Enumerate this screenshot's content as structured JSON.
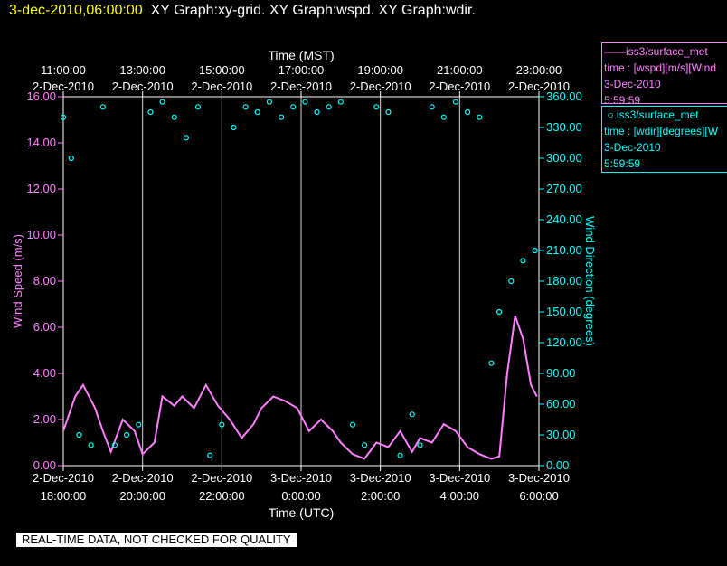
{
  "header": {
    "timestamp": "3-dec-2010,06:00:00",
    "graphs": "XY Graph:xy-grid.  XY Graph:wspd.  XY Graph:wdir."
  },
  "legend": {
    "wspd": {
      "line1": "iss3/surface_met",
      "line2": "time : [wspd][m/s][Wind",
      "line3": "3-Dec-2010",
      "line4": "5:59:59",
      "color": "#ff80ff",
      "symbol": "line"
    },
    "wdir": {
      "line1": "iss3/surface_met",
      "line2": "time : [wdir][degrees][W",
      "line3": "3-Dec-2010",
      "line4": "5:59:59",
      "color": "#00ffff",
      "symbol": "circle"
    }
  },
  "footer": "REAL-TIME DATA, NOT CHECKED FOR QUALITY",
  "chart_data": {
    "type": "scatter",
    "grid": "vertical only",
    "top_axis": {
      "label": "Time (MST)",
      "ticks": [
        {
          "time": "11:00:00",
          "date": "2-Dec-2010"
        },
        {
          "time": "13:00:00",
          "date": "2-Dec-2010"
        },
        {
          "time": "15:00:00",
          "date": "2-Dec-2010"
        },
        {
          "time": "17:00:00",
          "date": "2-Dec-2010"
        },
        {
          "time": "19:00:00",
          "date": "2-Dec-2010"
        },
        {
          "time": "21:00:00",
          "date": "2-Dec-2010"
        },
        {
          "time": "23:00:00",
          "date": "2-Dec-2010"
        }
      ]
    },
    "bottom_axis": {
      "label": "Time (UTC)",
      "ticks": [
        {
          "date": "2-Dec-2010",
          "time": "18:00:00"
        },
        {
          "date": "2-Dec-2010",
          "time": "20:00:00"
        },
        {
          "date": "2-Dec-2010",
          "time": "22:00:00"
        },
        {
          "date": "3-Dec-2010",
          "time": "0:00:00"
        },
        {
          "date": "3-Dec-2010",
          "time": "2:00:00"
        },
        {
          "date": "3-Dec-2010",
          "time": "4:00:00"
        },
        {
          "date": "3-Dec-2010",
          "time": "6:00:00"
        }
      ],
      "range": [
        "2-Dec-2010 18:00:00",
        "3-Dec-2010 06:00:00"
      ]
    },
    "left_axis": {
      "label": "Wind Speed (m/s)",
      "range": [
        0,
        16
      ],
      "ticks": [
        "0.00",
        "2.00",
        "4.00",
        "6.00",
        "8.00",
        "10.00",
        "12.00",
        "14.00",
        "16.00"
      ],
      "color": "#ff80ff"
    },
    "right_axis": {
      "label": "Wind Direction (degrees)",
      "range": [
        0,
        360
      ],
      "ticks": [
        "0.00",
        "30.00",
        "60.00",
        "90.00",
        "120.00",
        "150.00",
        "180.00",
        "210.00",
        "240.00",
        "270.00",
        "300.00",
        "330.00",
        "360.00"
      ],
      "color": "#00ffff"
    },
    "series": [
      {
        "name": "iss3/surface_met time : [wspd][m/s][Wind",
        "axis": "left",
        "style": "line",
        "color": "#ff80ff",
        "x_hours_utc_from_start": [
          0,
          0.3,
          0.5,
          0.8,
          1.0,
          1.2,
          1.5,
          1.8,
          2.0,
          2.3,
          2.5,
          2.8,
          3.0,
          3.3,
          3.6,
          3.9,
          4.2,
          4.5,
          4.8,
          5.0,
          5.3,
          5.6,
          5.9,
          6.2,
          6.5,
          6.8,
          7.0,
          7.3,
          7.6,
          7.9,
          8.2,
          8.5,
          8.8,
          9.0,
          9.3,
          9.6,
          9.9,
          10.2,
          10.5,
          10.8,
          11.0,
          11.2,
          11.4,
          11.6,
          11.8,
          11.95
        ],
        "y": [
          1.5,
          3.0,
          3.5,
          2.5,
          1.5,
          0.6,
          2.0,
          1.5,
          0.5,
          1.0,
          3.0,
          2.6,
          3.0,
          2.5,
          3.5,
          2.6,
          2.0,
          1.2,
          1.8,
          2.5,
          3.0,
          2.8,
          2.5,
          1.5,
          2.0,
          1.5,
          1.0,
          0.5,
          0.3,
          1.0,
          0.8,
          1.5,
          0.6,
          1.2,
          1.0,
          1.8,
          1.5,
          0.8,
          0.5,
          0.3,
          0.4,
          4.0,
          6.5,
          5.5,
          3.5,
          3.0
        ]
      },
      {
        "name": "iss3/surface_met time : [wdir][degrees][W",
        "axis": "right",
        "style": "circle",
        "color": "#00ffff",
        "x_hours_utc_from_start": [
          0,
          0.2,
          0.4,
          0.7,
          1.0,
          1.3,
          1.6,
          1.9,
          2.2,
          2.5,
          2.8,
          3.1,
          3.4,
          3.7,
          4.0,
          4.3,
          4.6,
          4.9,
          5.2,
          5.5,
          5.8,
          6.1,
          6.4,
          6.7,
          7.0,
          7.3,
          7.6,
          7.9,
          8.2,
          8.5,
          8.8,
          9.0,
          9.3,
          9.6,
          9.9,
          10.2,
          10.5,
          10.8,
          11.0,
          11.3,
          11.6,
          11.9
        ],
        "y": [
          340,
          300,
          30,
          20,
          350,
          20,
          30,
          40,
          345,
          355,
          340,
          320,
          350,
          10,
          40,
          330,
          350,
          345,
          355,
          340,
          350,
          355,
          345,
          350,
          355,
          40,
          20,
          350,
          345,
          10,
          50,
          20,
          350,
          340,
          355,
          345,
          340,
          100,
          150,
          180,
          200,
          210
        ]
      }
    ]
  }
}
